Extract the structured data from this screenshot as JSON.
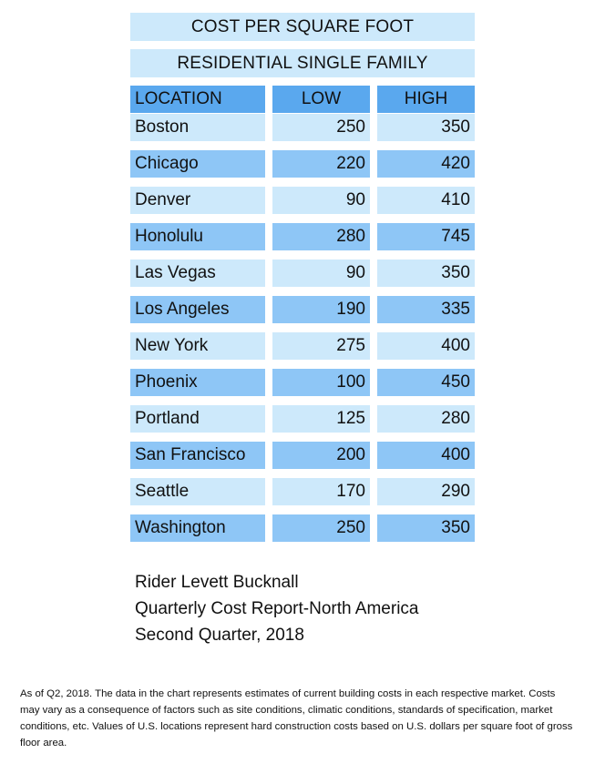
{
  "header": {
    "title": "COST PER SQUARE FOOT",
    "subtitle": "RESIDENTIAL SINGLE FAMILY"
  },
  "chart_data": {
    "type": "table",
    "columns": [
      "LOCATION",
      "LOW",
      "HIGH"
    ],
    "rows": [
      {
        "location": "Boston",
        "low": 250,
        "high": 350
      },
      {
        "location": "Chicago",
        "low": 220,
        "high": 420
      },
      {
        "location": "Denver",
        "low": 90,
        "high": 410
      },
      {
        "location": "Honolulu",
        "low": 280,
        "high": 745
      },
      {
        "location": "Las Vegas",
        "low": 90,
        "high": 350
      },
      {
        "location": "Los Angeles",
        "low": 190,
        "high": 335
      },
      {
        "location": "New York",
        "low": 275,
        "high": 400
      },
      {
        "location": "Phoenix",
        "low": 100,
        "high": 450
      },
      {
        "location": "Portland",
        "low": 125,
        "high": 280
      },
      {
        "location": "San Francisco",
        "low": 200,
        "high": 400
      },
      {
        "location": "Seattle",
        "low": 170,
        "high": 290
      },
      {
        "location": "Washington",
        "low": 250,
        "high": 350
      }
    ]
  },
  "colors": {
    "header_cell": "#5aa8ee",
    "row_light": "#cde9fb",
    "row_dark": "#8ec6f6",
    "title_bar": "#cde9fb"
  },
  "source": {
    "line1": "Rider Levett Bucknall",
    "line2": "Quarterly Cost Report-North America",
    "line3": "Second Quarter, 2018"
  },
  "footnote": "As of Q2, 2018.  The data in the chart represents estimates of current building costs in each respective market. Costs may vary as a consequence of factors such as site conditions, climatic conditions, standards of specification, market conditions, etc. Values of U.S. locations represent hard construction costs based on U.S. dollars per square foot of gross floor area."
}
